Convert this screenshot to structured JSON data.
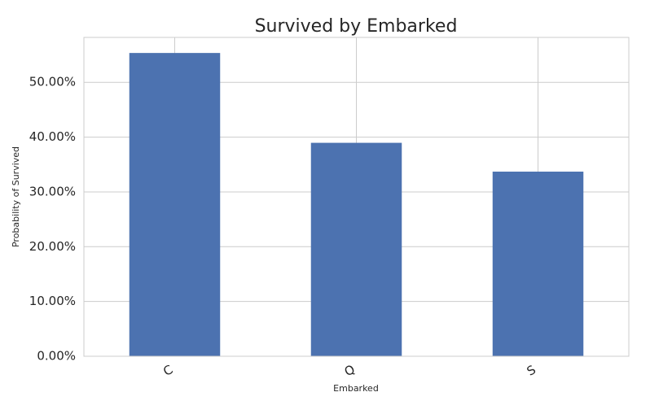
{
  "chart_data": {
    "type": "bar",
    "title": "Survived by Embarked",
    "xlabel": "Embarked",
    "ylabel": "Probability of Survived",
    "categories": [
      "C",
      "Q",
      "S"
    ],
    "values": [
      55.36,
      38.96,
      33.7
    ],
    "color": "#4c72b0",
    "ylim": [
      0,
      58.2
    ],
    "yticks": [
      {
        "value": 0,
        "label": "0.00%"
      },
      {
        "value": 10,
        "label": "10.00%"
      },
      {
        "value": 20,
        "label": "20.00%"
      },
      {
        "value": 30,
        "label": "30.00%"
      },
      {
        "value": 40,
        "label": "40.00%"
      },
      {
        "value": 50,
        "label": "50.00%"
      }
    ],
    "grid": true
  }
}
